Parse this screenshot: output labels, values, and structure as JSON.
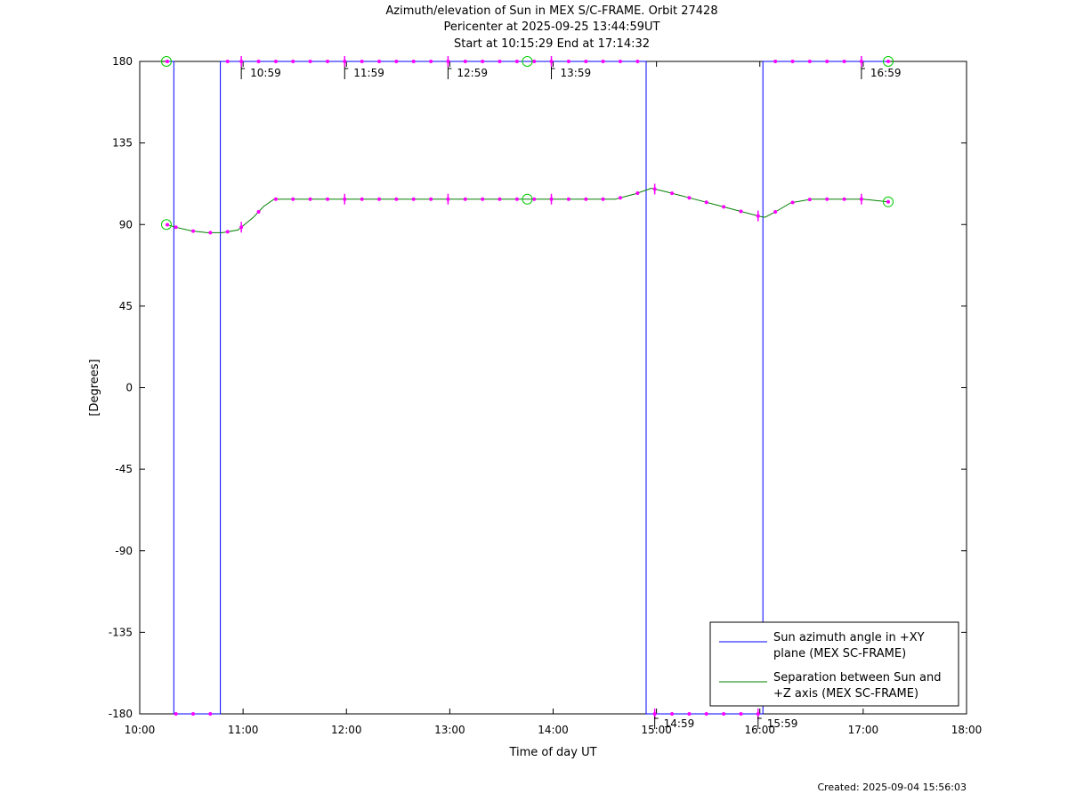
{
  "titles": [
    "Azimuth/elevation of Sun in MEX S/C-FRAME.  Orbit 27428",
    "Pericenter at 2025-09-25 13:44:59UT",
    "Start at 10:15:29 End at 17:14:32"
  ],
  "created": "Created: 2025-09-04 15:56:03",
  "chart_data": {
    "type": "line",
    "xlabel": "Time of day UT",
    "ylabel": "[Degrees]",
    "xlim": [
      10.0,
      18.0
    ],
    "ylim": [
      -180,
      180
    ],
    "xticks": [
      10,
      11,
      12,
      13,
      14,
      15,
      16,
      17,
      18
    ],
    "xtick_labels": [
      "10:00",
      "11:00",
      "12:00",
      "13:00",
      "14:00",
      "15:00",
      "16:00",
      "17:00",
      "18:00"
    ],
    "yticks": [
      -180,
      -135,
      -90,
      -45,
      0,
      45,
      90,
      135,
      180
    ],
    "ytick_labels": [
      "-180",
      "-135",
      "-90",
      "-45",
      "0",
      "45",
      "90",
      "135",
      "180"
    ],
    "legend_position": "bottom-right",
    "series": [
      {
        "name": "Sun azimuth angle in +XY plane (MEX SC-FRAME)",
        "legend_lines": [
          "Sun azimuth angle in +XY",
          "plane (MEX SC-FRAME)"
        ],
        "color": "#0000ff",
        "x": [
          10.26,
          10.33,
          10.33,
          10.78,
          10.78,
          11.5,
          12.5,
          13.5,
          14.5,
          14.9,
          14.9,
          15.5,
          16.03,
          16.03,
          16.5,
          17.24
        ],
        "y": [
          180,
          180,
          -180,
          -180,
          180,
          180,
          180,
          180,
          180,
          180,
          -180,
          -180,
          -180,
          180,
          180,
          180
        ]
      },
      {
        "name": "Separation between Sun and +Z axis (MEX SC-FRAME)",
        "legend_lines": [
          "Separation between Sun and",
          "+Z axis (MEX SC-FRAME)"
        ],
        "color": "#008000",
        "x": [
          10.26,
          10.35,
          10.5,
          10.65,
          10.8,
          10.95,
          11.1,
          11.2,
          11.3,
          11.5,
          12.0,
          13.0,
          14.0,
          14.6,
          14.8,
          14.95,
          15.1,
          15.3,
          15.6,
          15.8,
          16.0,
          16.05,
          16.15,
          16.3,
          16.5,
          17.0,
          17.24
        ],
        "y": [
          90,
          88.5,
          86.5,
          85.5,
          85.5,
          87,
          94,
          100,
          104,
          104,
          104,
          104,
          104,
          104,
          107,
          110,
          108,
          105,
          100.5,
          97.5,
          94.5,
          94,
          97,
          102,
          104,
          104,
          102.5
        ]
      }
    ],
    "marker_times": [
      10.267,
      10.35,
      10.517,
      10.683,
      10.85,
      10.983,
      11.15,
      11.317,
      11.483,
      11.65,
      11.817,
      11.983,
      12.15,
      12.317,
      12.483,
      12.65,
      12.817,
      12.983,
      13.15,
      13.317,
      13.483,
      13.65,
      13.817,
      13.983,
      14.15,
      14.317,
      14.483,
      14.65,
      14.817,
      14.983,
      15.15,
      15.317,
      15.483,
      15.65,
      15.817,
      15.983,
      16.15,
      16.317,
      16.483,
      16.65,
      16.817,
      16.983,
      17.242
    ],
    "tick_markers": [
      10.983,
      11.983,
      12.983,
      13.983,
      14.983,
      15.983,
      16.983
    ],
    "circle_markers": [
      10.258,
      13.75,
      17.242
    ],
    "time_annotations": [
      {
        "x": 10.983,
        "label": "10:59",
        "at": "top"
      },
      {
        "x": 11.983,
        "label": "11:59",
        "at": "top"
      },
      {
        "x": 12.983,
        "label": "12:59",
        "at": "top"
      },
      {
        "x": 13.983,
        "label": "13:59",
        "at": "top"
      },
      {
        "x": 14.983,
        "label": "14:59",
        "at": "bottom"
      },
      {
        "x": 15.983,
        "label": "15:59",
        "at": "bottom"
      },
      {
        "x": 16.983,
        "label": "16:59",
        "at": "top"
      }
    ],
    "marker_color": "#ff00ff",
    "circle_color": "#00cc00"
  }
}
